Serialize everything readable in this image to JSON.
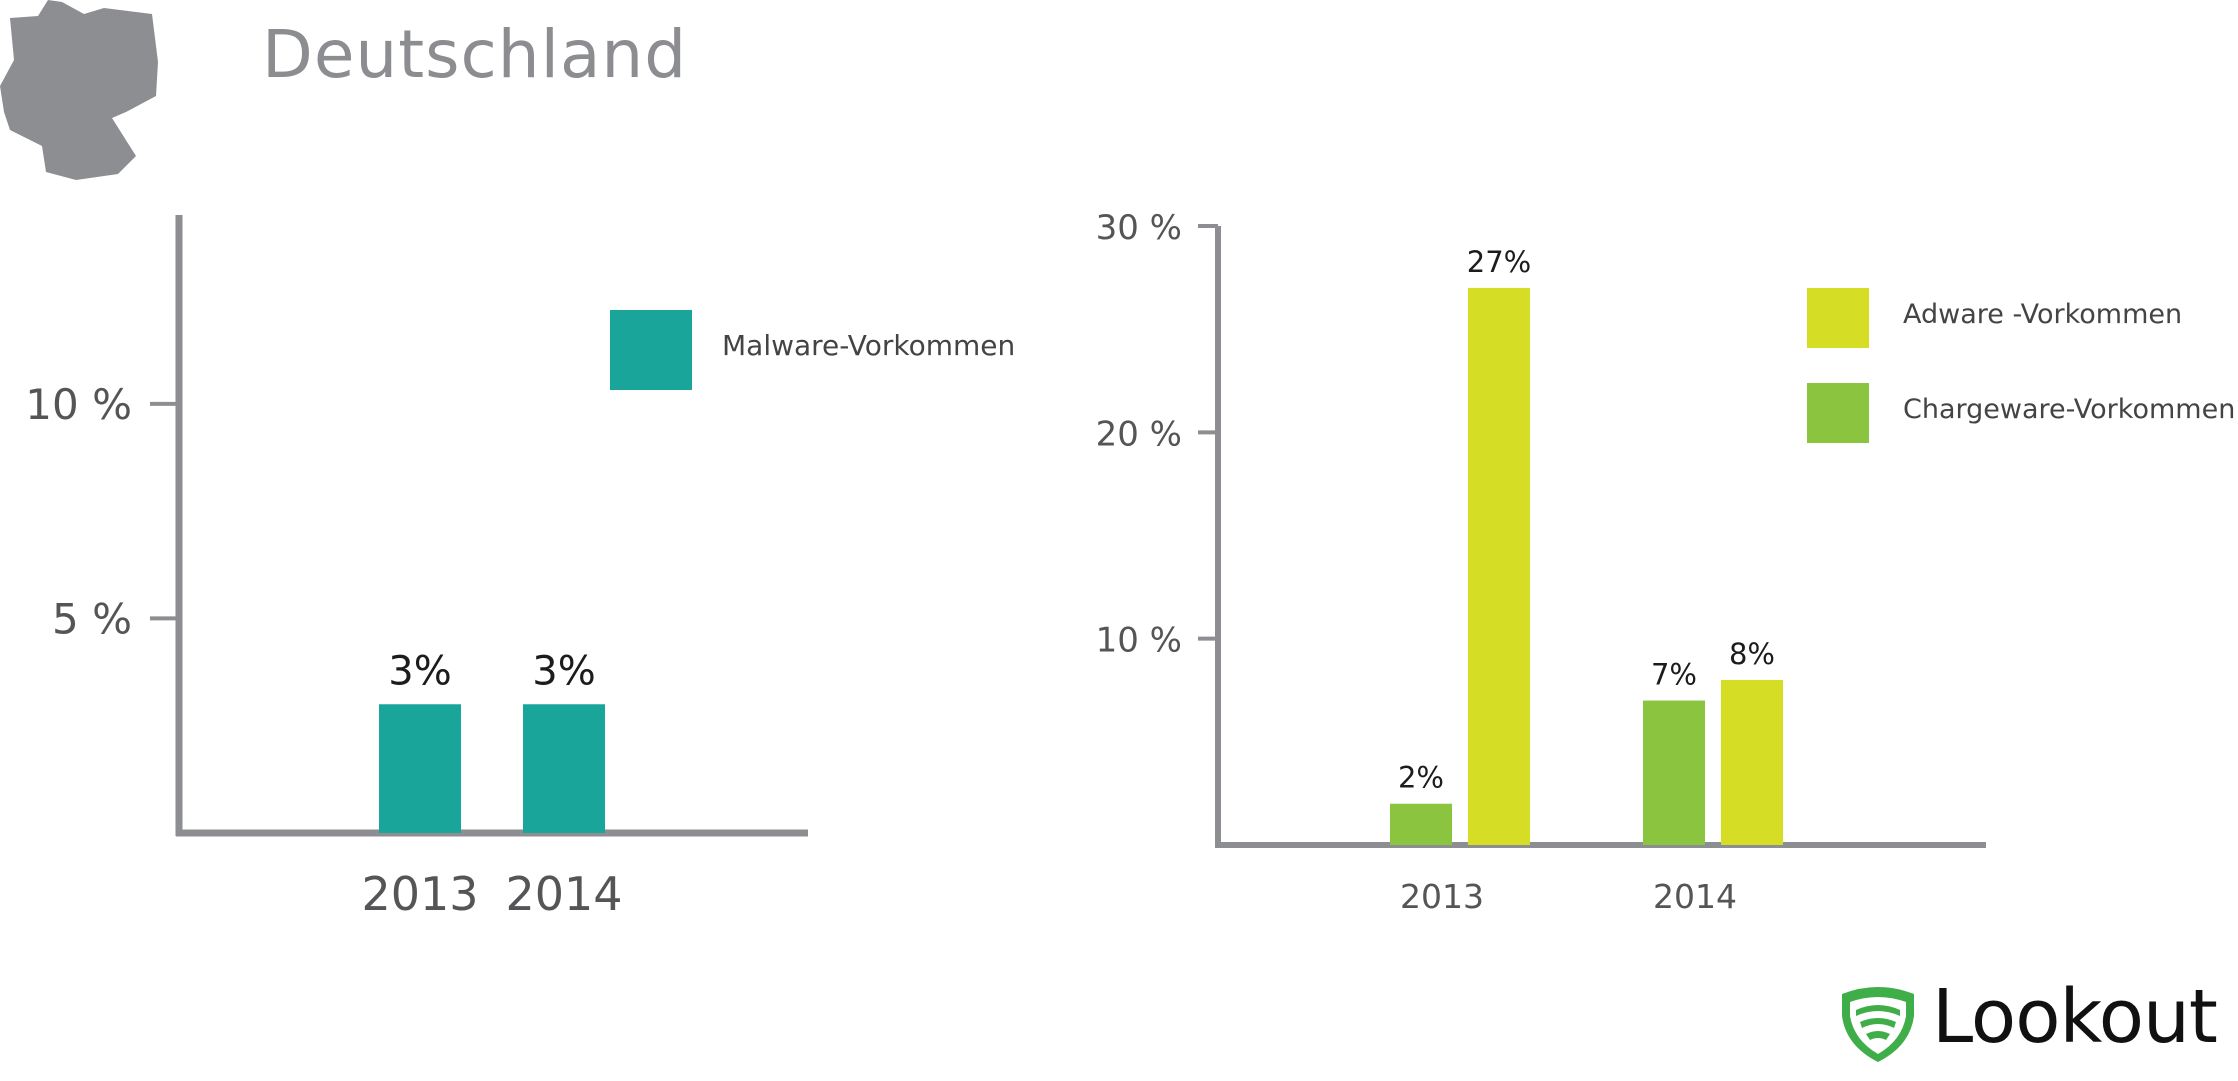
{
  "page": {
    "title": "Deutschland",
    "map_color": "#8d8e91",
    "logo_text": "Lookout",
    "logo_icon": "shield-wifi-icon",
    "logo_color": "#3fae49"
  },
  "chart_data": [
    {
      "type": "bar",
      "title": "",
      "categories": [
        "2013",
        "2014"
      ],
      "series": [
        {
          "name": "Malware-Vorkommen",
          "values": [
            3,
            3
          ],
          "labels": [
            "3%",
            "3%"
          ],
          "color": "#1aa59a"
        }
      ],
      "yticks": [
        5,
        10
      ],
      "ytick_labels": [
        "5 %",
        "10 %"
      ],
      "ylim": [
        0,
        14.4
      ],
      "grid": false,
      "legend": "top-right"
    },
    {
      "type": "bar",
      "title": "",
      "categories": [
        "2013",
        "2014"
      ],
      "series": [
        {
          "name": "Chargeware-Vorkommen",
          "values": [
            2,
            7
          ],
          "labels": [
            "2%",
            "7%"
          ],
          "color": "#8bc43f"
        },
        {
          "name": "Adware -Vorkommen",
          "values": [
            27,
            8
          ],
          "labels": [
            "27%",
            "8%"
          ],
          "color": "#d5dd24"
        }
      ],
      "legend_order": [
        1,
        0
      ],
      "yticks": [
        10,
        20,
        30
      ],
      "ytick_labels": [
        "10 %",
        "20 %",
        "30 %"
      ],
      "ylim": [
        0,
        30
      ],
      "grid": false,
      "legend": "top-right"
    }
  ]
}
